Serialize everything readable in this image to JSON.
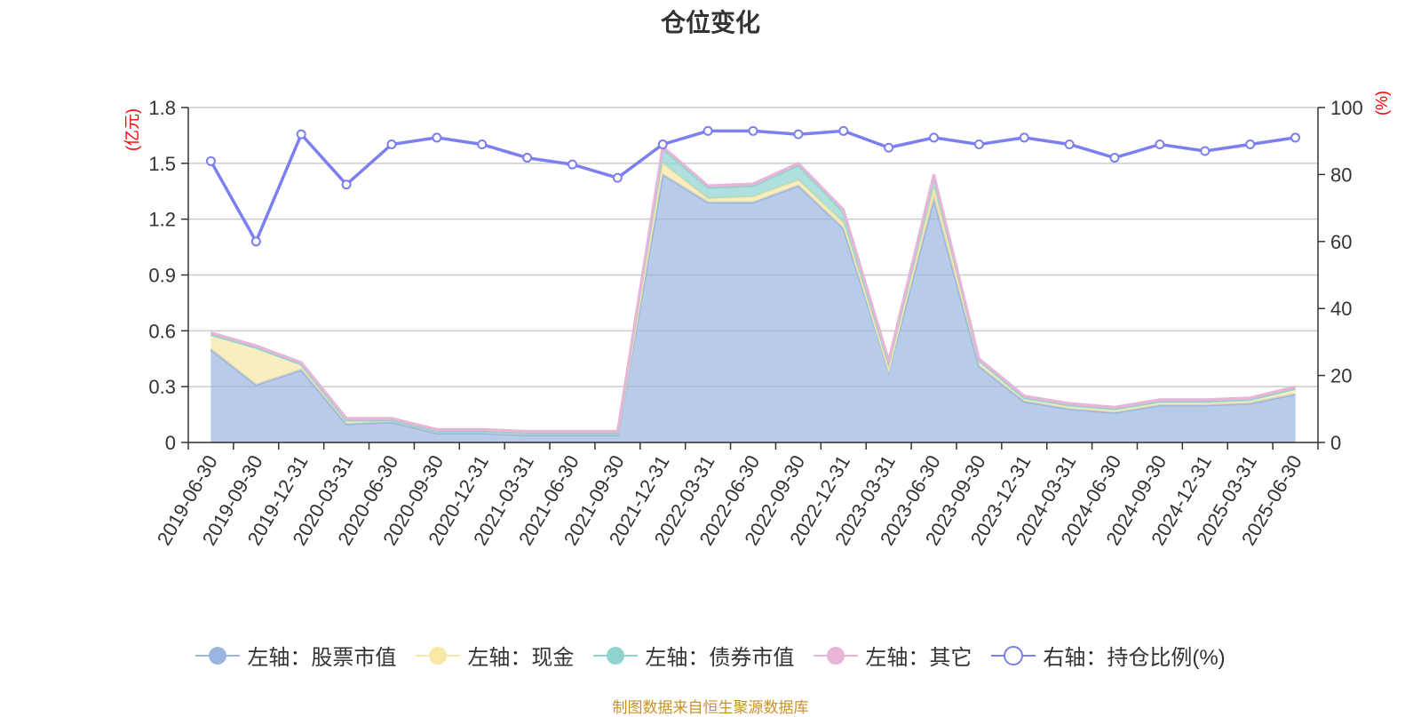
{
  "title": "仓位变化",
  "footer": "制图数据来自恒生聚源数据库",
  "chart_data": {
    "type": "area",
    "title": "仓位变化",
    "categories": [
      "2019-06-30",
      "2019-09-30",
      "2019-12-31",
      "2020-03-31",
      "2020-06-30",
      "2020-09-30",
      "2020-12-31",
      "2021-03-31",
      "2021-06-30",
      "2021-09-30",
      "2021-12-31",
      "2022-03-31",
      "2022-06-30",
      "2022-09-30",
      "2022-12-31",
      "2023-03-31",
      "2023-06-30",
      "2023-09-30",
      "2023-12-31",
      "2024-03-31",
      "2024-06-30",
      "2024-09-30",
      "2024-12-31",
      "2025-03-31",
      "2025-06-30"
    ],
    "left_axis": {
      "unit": "(亿元)",
      "ylim": [
        0,
        1.8
      ],
      "ticks": [
        "0",
        "0.3",
        "0.6",
        "0.9",
        "1.2",
        "1.5",
        "1.8"
      ]
    },
    "right_axis": {
      "unit": "(%)",
      "ylim": [
        0,
        100
      ],
      "ticks": [
        "0",
        "20",
        "40",
        "60",
        "80",
        "100"
      ]
    },
    "series": [
      {
        "name": "左轴：股票市值",
        "axis": "left",
        "type": "area",
        "color": "#9ab6e0",
        "values": [
          0.5,
          0.31,
          0.39,
          0.1,
          0.11,
          0.05,
          0.05,
          0.04,
          0.04,
          0.04,
          1.44,
          1.29,
          1.29,
          1.38,
          1.15,
          0.39,
          1.31,
          0.41,
          0.22,
          0.18,
          0.16,
          0.2,
          0.2,
          0.21,
          0.26
        ]
      },
      {
        "name": "左轴：现金",
        "axis": "left",
        "type": "area",
        "color": "#f8e7a6",
        "values": [
          0.08,
          0.2,
          0.03,
          0.02,
          0.01,
          0.01,
          0.01,
          0.01,
          0.01,
          0.01,
          0.06,
          0.02,
          0.03,
          0.03,
          0.03,
          0.01,
          0.06,
          0.03,
          0.02,
          0.02,
          0.02,
          0.02,
          0.02,
          0.02,
          0.03
        ]
      },
      {
        "name": "左轴：债券市值",
        "axis": "left",
        "type": "area",
        "color": "#8fd3cf",
        "values": [
          0,
          0,
          0,
          0,
          0,
          0,
          0,
          0,
          0,
          0,
          0.08,
          0.06,
          0.06,
          0.08,
          0.06,
          0.03,
          0.06,
          0,
          0,
          0,
          0,
          0,
          0,
          0,
          0
        ]
      },
      {
        "name": "左轴：其它",
        "axis": "left",
        "type": "area",
        "color": "#e8b4d8",
        "values": [
          0.01,
          0.01,
          0.01,
          0.01,
          0.01,
          0.01,
          0.01,
          0.01,
          0.01,
          0.01,
          0.01,
          0.01,
          0.01,
          0.01,
          0.01,
          0.01,
          0.01,
          0.01,
          0.01,
          0.01,
          0.01,
          0.01,
          0.01,
          0.01,
          0.01
        ]
      },
      {
        "name": "右轴：持仓比例(%)",
        "axis": "right",
        "type": "line",
        "color": "#7b7ff0",
        "values": [
          84,
          60,
          92,
          77,
          89,
          91,
          89,
          85,
          83,
          79,
          89,
          93,
          93,
          92,
          93,
          88,
          91,
          89,
          91,
          89,
          85,
          89,
          87,
          89,
          91
        ]
      }
    ],
    "grid": true,
    "legend_position": "bottom"
  }
}
